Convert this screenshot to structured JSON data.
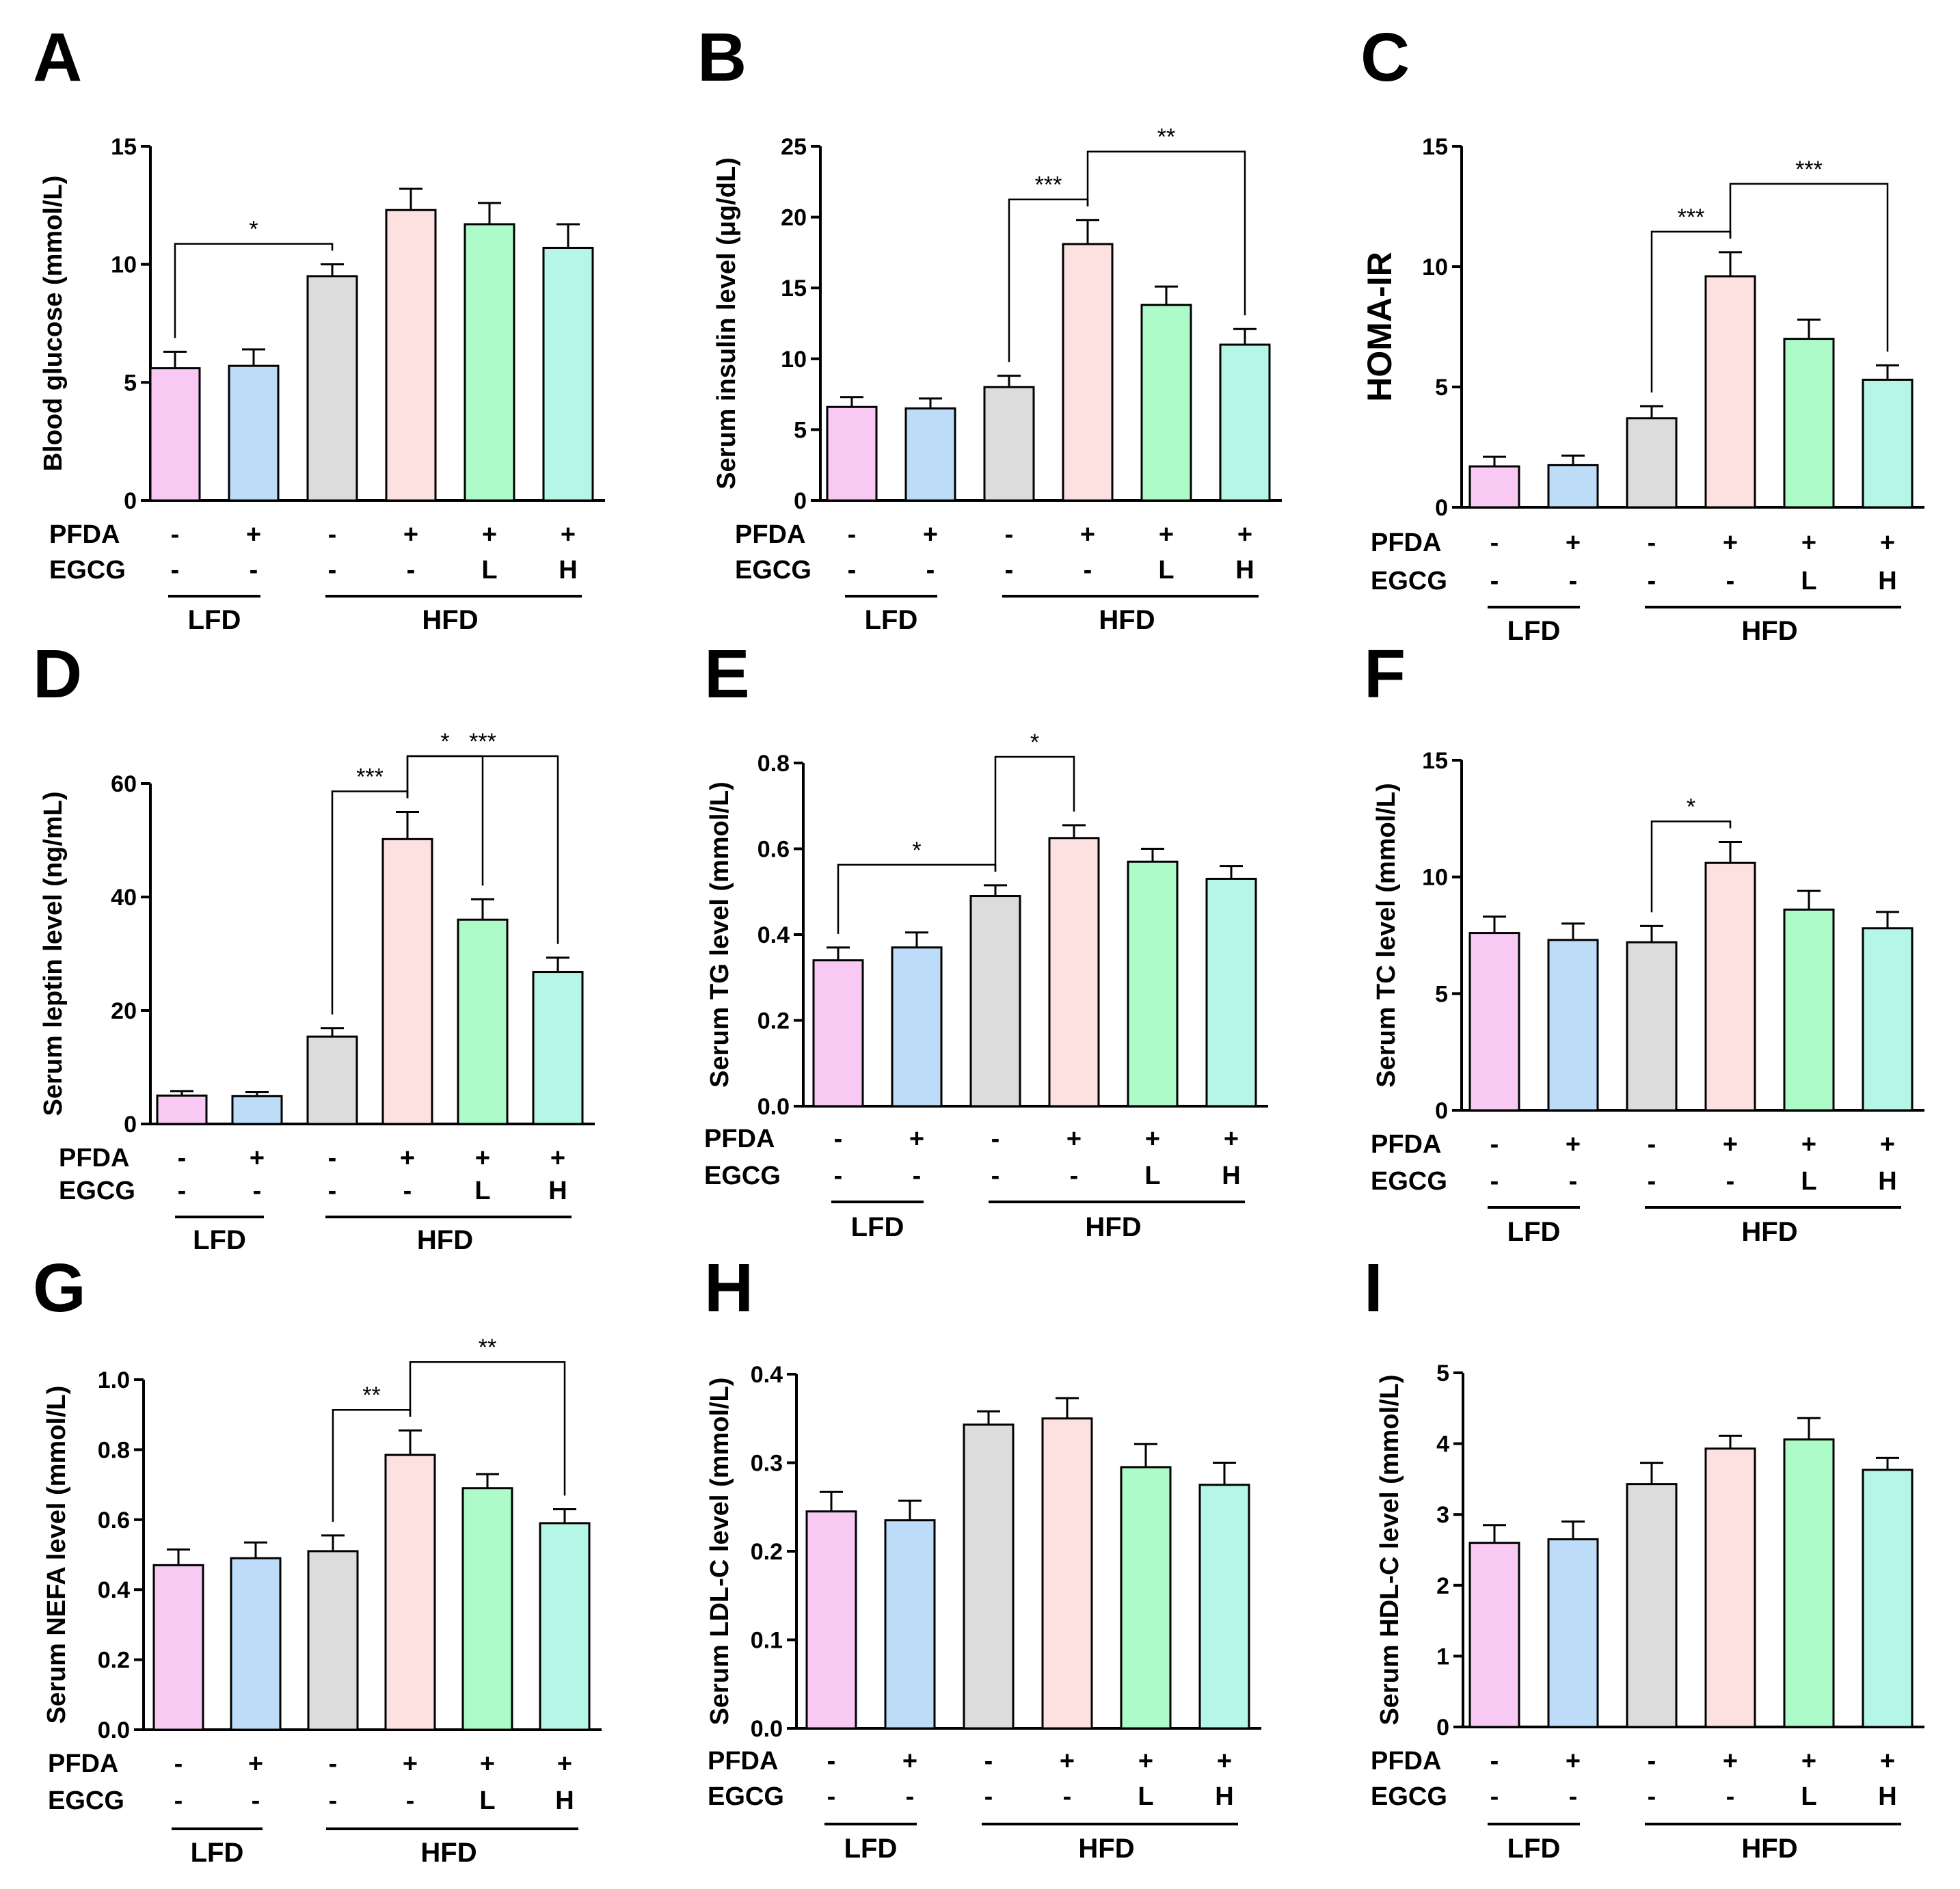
{
  "figure": {
    "group_labels": {
      "lfd": "LFD",
      "hfd": "HFD"
    },
    "row_labels": {
      "pfda": "PFDA",
      "egcg": "EGCG"
    },
    "pfda_values": [
      "-",
      "+",
      "-",
      "+",
      "+",
      "+"
    ],
    "egcg_values": [
      "-",
      "-",
      "-",
      "-",
      "L",
      "H"
    ],
    "bar_colors": [
      "#f7c9f3",
      "#bcdcf7",
      "#dcdcdc",
      "#fde0e0",
      "#adfbc8",
      "#b6f6e6"
    ]
  },
  "chart_data": [
    {
      "panel": "A",
      "type": "bar",
      "ylabel": "Blood glucose (mmol/L)",
      "ylim": [
        0,
        15
      ],
      "yticks": [
        "0",
        "5",
        "10",
        "15"
      ],
      "values": [
        5.6,
        5.7,
        9.5,
        12.3,
        11.7,
        10.7
      ],
      "errors": [
        0.7,
        0.7,
        0.5,
        0.9,
        0.9,
        1.0
      ],
      "significance": [
        {
          "from": 0,
          "to": 2,
          "label": "*"
        }
      ]
    },
    {
      "panel": "B",
      "type": "bar",
      "ylabel": "Serum insulin level (μg/dL)",
      "ylim": [
        0,
        25
      ],
      "yticks": [
        "0",
        "5",
        "10",
        "15",
        "20",
        "25"
      ],
      "values": [
        6.6,
        6.5,
        8.0,
        18.1,
        13.8,
        11.0
      ],
      "errors": [
        0.7,
        0.7,
        0.8,
        1.7,
        1.3,
        1.1
      ],
      "significance": [
        {
          "from": 2,
          "to": 3,
          "label": "***"
        },
        {
          "from": 3,
          "to": 5,
          "label": "**"
        }
      ]
    },
    {
      "panel": "C",
      "type": "bar",
      "ylabel": "HOMA-IR",
      "ylim": [
        0,
        15
      ],
      "yticks": [
        "0",
        "5",
        "10",
        "15"
      ],
      "values": [
        1.7,
        1.75,
        3.7,
        9.6,
        7.0,
        5.3
      ],
      "errors": [
        0.4,
        0.4,
        0.5,
        1.0,
        0.8,
        0.6
      ],
      "significance": [
        {
          "from": 2,
          "to": 3,
          "label": "***"
        },
        {
          "from": 3,
          "to": 5,
          "label": "***"
        }
      ]
    },
    {
      "panel": "D",
      "type": "bar",
      "ylabel": "Serum leptin level (ng/mL)",
      "ylim": [
        0,
        60
      ],
      "yticks": [
        "0",
        "20",
        "40",
        "60"
      ],
      "values": [
        5.0,
        4.9,
        15.4,
        50.2,
        36.0,
        26.8
      ],
      "errors": [
        0.8,
        0.7,
        1.5,
        4.8,
        3.6,
        2.5
      ],
      "significance": [
        {
          "from": 2,
          "to": 3,
          "label": "***"
        },
        {
          "from": 3,
          "to": 4,
          "label": "*"
        },
        {
          "from": 3,
          "to": 5,
          "label": "***"
        }
      ]
    },
    {
      "panel": "E",
      "type": "bar",
      "ylabel": "Serum TG level (mmol/L)",
      "ylim": [
        0,
        0.8
      ],
      "yticks": [
        "0.0",
        "0.2",
        "0.4",
        "0.6",
        "0.8"
      ],
      "values": [
        0.34,
        0.37,
        0.49,
        0.625,
        0.57,
        0.53
      ],
      "errors": [
        0.03,
        0.035,
        0.025,
        0.03,
        0.03,
        0.03
      ],
      "significance": [
        {
          "from": 0,
          "to": 2,
          "label": "*"
        },
        {
          "from": 2,
          "to": 3,
          "label": "*"
        }
      ]
    },
    {
      "panel": "F",
      "type": "bar",
      "ylabel": "Serum TC level (mmol/L)",
      "ylim": [
        0,
        15
      ],
      "yticks": [
        "0",
        "5",
        "10",
        "15"
      ],
      "values": [
        7.6,
        7.3,
        7.2,
        10.6,
        8.6,
        7.8
      ],
      "errors": [
        0.7,
        0.7,
        0.7,
        0.9,
        0.8,
        0.7
      ],
      "significance": [
        {
          "from": 2,
          "to": 3,
          "label": "*"
        }
      ]
    },
    {
      "panel": "G",
      "type": "bar",
      "ylabel": "Serum NEFA level (mmol/L)",
      "ylim": [
        0,
        1.0
      ],
      "yticks": [
        "0.0",
        "0.2",
        "0.4",
        "0.6",
        "0.8",
        "1.0"
      ],
      "values": [
        0.47,
        0.49,
        0.51,
        0.785,
        0.69,
        0.59
      ],
      "errors": [
        0.045,
        0.045,
        0.045,
        0.07,
        0.04,
        0.04
      ],
      "significance": [
        {
          "from": 2,
          "to": 3,
          "label": "**"
        },
        {
          "from": 3,
          "to": 5,
          "label": "**"
        }
      ]
    },
    {
      "panel": "H",
      "type": "bar",
      "ylabel": "Serum LDL-C level (mmol/L)",
      "ylim": [
        0,
        0.4
      ],
      "yticks": [
        "0.0",
        "0.1",
        "0.2",
        "0.3",
        "0.4"
      ],
      "values": [
        0.245,
        0.235,
        0.343,
        0.35,
        0.295,
        0.275
      ],
      "errors": [
        0.022,
        0.022,
        0.015,
        0.023,
        0.026,
        0.025
      ],
      "significance": []
    },
    {
      "panel": "I",
      "type": "bar",
      "ylabel": "Serum HDL-C level (mmol/L)",
      "ylim": [
        0,
        5
      ],
      "yticks": [
        "0",
        "1",
        "2",
        "3",
        "4",
        "5"
      ],
      "values": [
        2.6,
        2.65,
        3.43,
        3.93,
        4.06,
        3.63
      ],
      "errors": [
        0.25,
        0.25,
        0.3,
        0.18,
        0.3,
        0.17
      ],
      "significance": []
    }
  ]
}
